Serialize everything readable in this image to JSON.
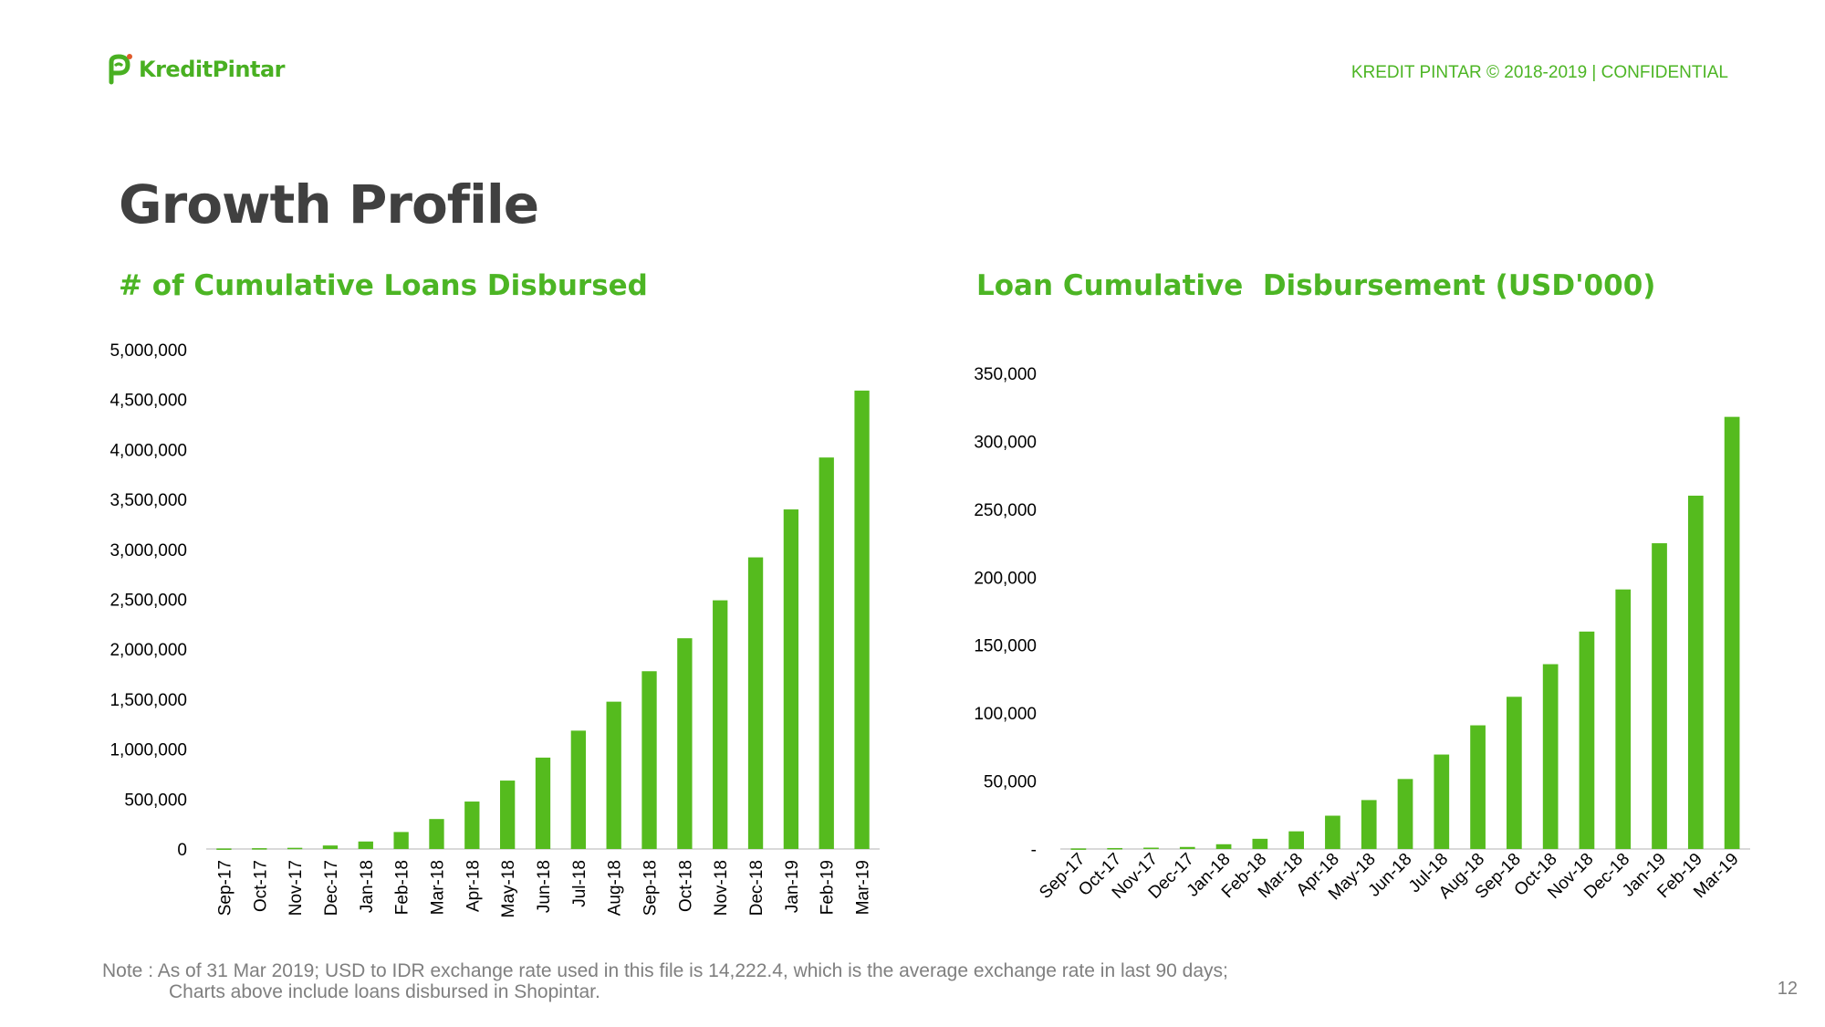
{
  "header": {
    "logo_text": "KreditPintar",
    "confidential": "KREDIT PINTAR © 2018-2019 | CONFIDENTIAL",
    "brand_color": "#4cb524"
  },
  "page_title": "Growth Profile",
  "chart_data": [
    {
      "type": "bar",
      "title": "# of Cumulative Loans Disbursed",
      "xlabel": "",
      "ylabel": "",
      "ylim": [
        0,
        5000000
      ],
      "yticks": [
        0,
        500000,
        1000000,
        1500000,
        2000000,
        2500000,
        3000000,
        3500000,
        4000000,
        4500000,
        5000000
      ],
      "ytick_labels": [
        "0",
        "500,000",
        "1,000,000",
        "1,500,000",
        "2,000,000",
        "2,500,000",
        "3,000,000",
        "3,500,000",
        "4,000,000",
        "4,500,000",
        "5,000,000"
      ],
      "categories": [
        "Sep-17",
        "Oct-17",
        "Nov-17",
        "Dec-17",
        "Jan-18",
        "Feb-18",
        "Mar-18",
        "Apr-18",
        "May-18",
        "Jun-18",
        "Jul-18",
        "Aug-18",
        "Sep-18",
        "Oct-18",
        "Nov-18",
        "Dec-18",
        "Jan-19",
        "Feb-19",
        "Mar-19"
      ],
      "values": [
        5000,
        8000,
        12000,
        35000,
        75000,
        170000,
        300000,
        475000,
        685000,
        915000,
        1185000,
        1475000,
        1780000,
        2110000,
        2490000,
        2920000,
        3400000,
        3920000,
        4590000
      ],
      "color": "#55bb1e",
      "grid": false,
      "legend": "none"
    },
    {
      "type": "bar",
      "title": "Loan Cumulative  Disbursement (USD'000)",
      "xlabel": "",
      "ylabel": "",
      "ylim": [
        0,
        350000
      ],
      "yticks": [
        0,
        50000,
        100000,
        150000,
        200000,
        250000,
        300000,
        350000
      ],
      "ytick_labels": [
        "-",
        "50,000",
        "100,000",
        "150,000",
        "200,000",
        "250,000",
        "300,000",
        "350,000"
      ],
      "categories": [
        "Sep-17",
        "Oct-17",
        "Nov-17",
        "Dec-17",
        "Jan-18",
        "Feb-18",
        "Mar-18",
        "Apr-18",
        "May-18",
        "Jun-18",
        "Jul-18",
        "Aug-18",
        "Sep-18",
        "Oct-18",
        "Nov-18",
        "Dec-18",
        "Jan-19",
        "Feb-19",
        "Mar-19"
      ],
      "values": [
        400,
        700,
        1000,
        1500,
        3500,
        7500,
        13000,
        24500,
        36000,
        51500,
        69500,
        91000,
        112000,
        136000,
        160000,
        191000,
        225000,
        260000,
        318000
      ],
      "color": "#55bb1e",
      "grid": false,
      "legend": "none"
    }
  ],
  "note": {
    "line1": "Note : As of 31 Mar 2019; USD to IDR exchange rate used in this file is 14,222.4, which is the average exchange rate in last 90 days;",
    "line2": "Charts above include loans disbursed in Shopintar."
  },
  "page_number": "12"
}
